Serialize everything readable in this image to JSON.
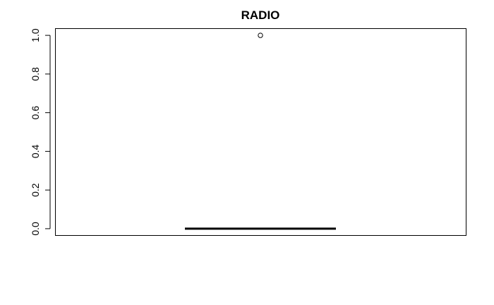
{
  "chart_data": {
    "type": "box",
    "title": "RADIO",
    "ylim": [
      -0.035,
      1.035
    ],
    "yticks": [
      0.0,
      0.2,
      0.4,
      0.6,
      0.8,
      1.0
    ],
    "ytick_labels": [
      "0.0",
      "0.2",
      "0.4",
      "0.6",
      "0.8",
      "1.0"
    ],
    "box": {
      "min": 0.0,
      "q1": 0.0,
      "median": 0.0,
      "q3": 0.0,
      "max": 0.0,
      "outliers": [
        1.0
      ]
    },
    "colors": {
      "axis": "#000000",
      "median": "#000000"
    }
  }
}
